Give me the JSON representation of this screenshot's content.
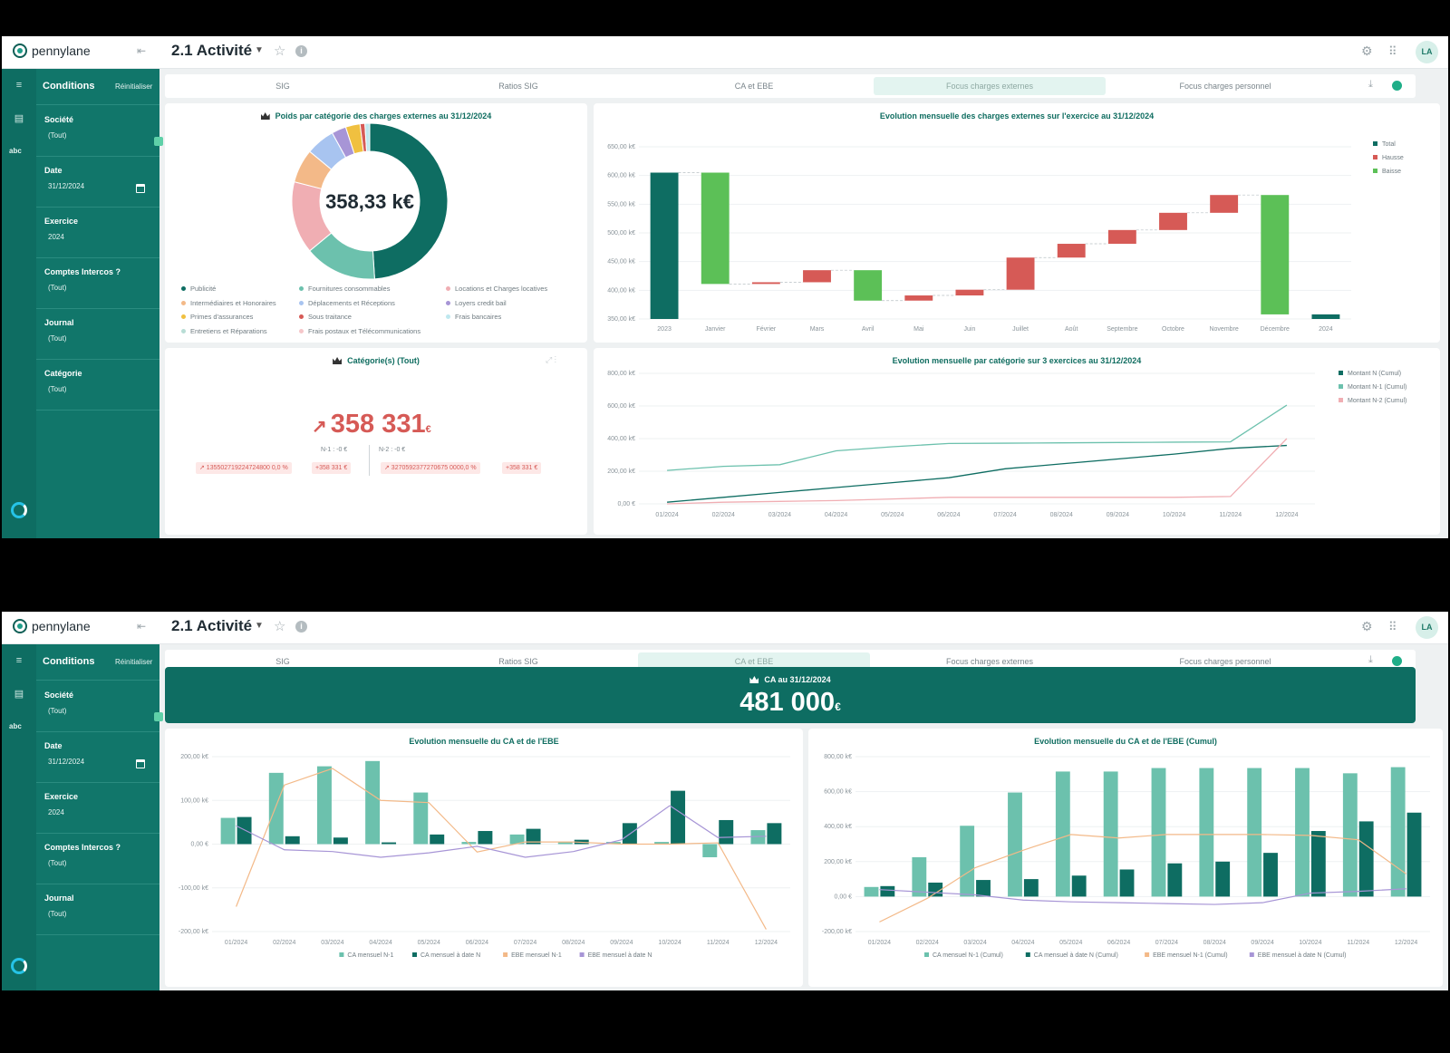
{
  "app": {
    "brand": "pennylane",
    "page_title": "2.1 Activité",
    "avatar": "LA",
    "collapse_icon": "sidebar-collapse-icon"
  },
  "sidebar": {
    "title": "Conditions",
    "reset": "Réinitialiser",
    "rail_abc": "abc"
  },
  "filters_screen1": [
    {
      "label": "Société",
      "value": "(Tout)"
    },
    {
      "label": "Date",
      "value": "31/12/2024"
    },
    {
      "label": "Exercice",
      "value": "2024"
    },
    {
      "label": "Comptes Intercos ?",
      "value": "(Tout)"
    },
    {
      "label": "Journal",
      "value": "(Tout)"
    },
    {
      "label": "Catégorie",
      "value": "(Tout)"
    }
  ],
  "filters_screen2": [
    {
      "label": "Société",
      "value": "(Tout)"
    },
    {
      "label": "Date",
      "value": "31/12/2024"
    },
    {
      "label": "Exercice",
      "value": "2024"
    },
    {
      "label": "Comptes Intercos ?",
      "value": "(Tout)"
    },
    {
      "label": "Journal",
      "value": "(Tout)"
    }
  ],
  "tabs": [
    "SIG",
    "Ratios SIG",
    "CA et EBE",
    "Focus charges externes",
    "Focus charges personnel"
  ],
  "screen1_active_tab": "Focus charges externes",
  "screen2_active_tab": "CA et EBE",
  "colors": {
    "dark_teal": "#0e6d62",
    "mint": "#6cc1ad",
    "red": "#d65a56",
    "green": "#5cc057",
    "orange": "#f3b988",
    "purple": "#a795d6",
    "pink": "#f0aeb3"
  },
  "donut": {
    "title": "Poids par catégorie des charges externes au 31/12/2024",
    "center_label": "358,33 k€",
    "legend": [
      {
        "label": "Publicité",
        "color": "#0e6d62"
      },
      {
        "label": "Fournitures consommables",
        "color": "#6cc1ad"
      },
      {
        "label": "Locations et Charges locatives",
        "color": "#f0aeb3"
      },
      {
        "label": "Intermédiaires et Honoraires",
        "color": "#f3b988"
      },
      {
        "label": "Déplacements et Réceptions",
        "color": "#a8c4f0"
      },
      {
        "label": "Loyers credit bail",
        "color": "#a795d6"
      },
      {
        "label": "Primes d'assurances",
        "color": "#f0c040"
      },
      {
        "label": "Sous traitance",
        "color": "#d65a56"
      },
      {
        "label": "Frais bancaires",
        "color": "#bfe8ef"
      },
      {
        "label": "Entretiens et Réparations",
        "color": "#b8ddd5"
      },
      {
        "label": "Frais postaux et Télécommunications",
        "color": "#f5c6c9"
      }
    ],
    "chart_data": {
      "type": "pie",
      "categories": [
        "Publicité",
        "Fournitures consommables",
        "Locations et Charges locatives",
        "Intermédiaires et Honoraires",
        "Déplacements et Réceptions",
        "Loyers credit bail",
        "Primes d'assurances",
        "Sous traitance",
        "Frais bancaires"
      ],
      "values": [
        49,
        15,
        15,
        7,
        6,
        3,
        3,
        1,
        1
      ]
    }
  },
  "waterfall": {
    "title": "Evolution mensuelle des charges externes sur l'exercice  au 31/12/2024",
    "legend": [
      {
        "label": "Total",
        "color": "#0e6d62"
      },
      {
        "label": "Hausse",
        "color": "#d65a56"
      },
      {
        "label": "Baisse",
        "color": "#5cc057"
      }
    ],
    "chart_data": {
      "type": "bar",
      "categories": [
        "2023",
        "Janvier",
        "Février",
        "Mars",
        "Avril",
        "Mai",
        "Juin",
        "Juillet",
        "Août",
        "Septembre",
        "Octobre",
        "Novembre",
        "Décembre",
        "2024"
      ],
      "y_ticks": [
        "650,00 k€",
        "600,00 k€",
        "550,00 k€",
        "500,00 k€",
        "450,00 k€",
        "400,00 k€",
        "350,00 k€"
      ],
      "ylim": [
        350,
        650
      ],
      "bars": [
        {
          "kind": "Total",
          "start": 350,
          "end": 605
        },
        {
          "kind": "Baisse",
          "start": 605,
          "end": 411
        },
        {
          "kind": "Hausse",
          "start": 411,
          "end": 414
        },
        {
          "kind": "Hausse",
          "start": 414,
          "end": 435
        },
        {
          "kind": "Baisse",
          "start": 435,
          "end": 382
        },
        {
          "kind": "Hausse",
          "start": 382,
          "end": 391
        },
        {
          "kind": "Hausse",
          "start": 391,
          "end": 401
        },
        {
          "kind": "Hausse",
          "start": 401,
          "end": 457
        },
        {
          "kind": "Hausse",
          "start": 457,
          "end": 481
        },
        {
          "kind": "Hausse",
          "start": 481,
          "end": 505
        },
        {
          "kind": "Hausse",
          "start": 505,
          "end": 535
        },
        {
          "kind": "Hausse",
          "start": 535,
          "end": 566
        },
        {
          "kind": "Baisse",
          "start": 566,
          "end": 358
        },
        {
          "kind": "Total",
          "start": 350,
          "end": 358
        }
      ]
    }
  },
  "kpi": {
    "title": "Catégorie(s) (Tout)",
    "value": "358 331",
    "unit": "€",
    "n1_label": "N-1 :  -0 €",
    "n2_label": "N-2 :  -0 €",
    "chips": [
      "↗ 135502719224724800 0,0 %",
      "+358 331 €",
      "↗ 3270592377270675 0000,0 %",
      "+358 331 €"
    ]
  },
  "cumul3": {
    "title": "Evolution mensuelle par catégorie sur 3 exercices au 31/12/2024",
    "chart_data": {
      "type": "line",
      "x": [
        "01/2024",
        "02/2024",
        "03/2024",
        "04/2024",
        "05/2024",
        "06/2024",
        "07/2024",
        "08/2024",
        "09/2024",
        "10/2024",
        "11/2024",
        "12/2024"
      ],
      "y_ticks": [
        "800,00 k€",
        "600,00 k€",
        "400,00 k€",
        "200,00 k€",
        "0,00 €"
      ],
      "ylim": [
        0,
        800
      ],
      "series": [
        {
          "name": "Montant N (Cumul)",
          "color": "#0e6d62",
          "values": [
            10,
            40,
            70,
            100,
            130,
            160,
            215,
            245,
            275,
            305,
            340,
            358
          ]
        },
        {
          "name": "Montant N-1 (Cumul)",
          "color": "#6cc1ad",
          "values": [
            205,
            230,
            240,
            325,
            350,
            370,
            372,
            374,
            376,
            378,
            380,
            605
          ]
        },
        {
          "name": "Montant N-2 (Cumul)",
          "color": "#f0aeb3",
          "values": [
            0,
            10,
            15,
            20,
            30,
            40,
            40,
            40,
            40,
            40,
            45,
            400
          ]
        }
      ]
    }
  },
  "banner": {
    "title": "CA au 31/12/2024",
    "value": "481 000",
    "unit": "€"
  },
  "monthly": {
    "title": "Evolution mensuelle du CA et de l'EBE",
    "chart_data": {
      "type": "bar",
      "categories": [
        "01/2024",
        "02/2024",
        "03/2024",
        "04/2024",
        "05/2024",
        "06/2024",
        "07/2024",
        "08/2024",
        "09/2024",
        "10/2024",
        "11/2024",
        "12/2024"
      ],
      "y_ticks": [
        "200,00 k€",
        "100,00 k€",
        "0,00 €",
        "-100,00 k€",
        "-200,00 k€"
      ],
      "ylim": [
        -200,
        200
      ],
      "series": [
        {
          "name": "CA mensuel N-1",
          "color": "#6cc1ad",
          "values": [
            60,
            163,
            178,
            190,
            118,
            5,
            22,
            5,
            5,
            5,
            -30,
            32
          ]
        },
        {
          "name": "CA mensuel à date N",
          "color": "#0e6d62",
          "values": [
            62,
            18,
            15,
            4,
            22,
            30,
            35,
            10,
            48,
            122,
            55,
            48
          ]
        },
        {
          "name": "EBE mensuel N-1",
          "color": "#f3b988",
          "values": [
            -143,
            135,
            173,
            100,
            95,
            -18,
            5,
            5,
            0,
            0,
            3,
            -195
          ]
        },
        {
          "name": "EBE mensuel à date N",
          "color": "#a795d6",
          "values": [
            42,
            -13,
            -17,
            -30,
            -20,
            -5,
            -30,
            -17,
            10,
            88,
            15,
            18
          ]
        }
      ]
    }
  },
  "monthly_cumul": {
    "title": "Evolution mensuelle du CA et de l'EBE (Cumul)",
    "chart_data": {
      "type": "bar",
      "categories": [
        "01/2024",
        "02/2024",
        "03/2024",
        "04/2024",
        "05/2024",
        "06/2024",
        "07/2024",
        "08/2024",
        "09/2024",
        "10/2024",
        "11/2024",
        "12/2024"
      ],
      "y_ticks": [
        "800,00 k€",
        "600,00 k€",
        "400,00 k€",
        "200,00 k€",
        "0,00 €",
        "-200,00 k€"
      ],
      "ylim": [
        -200,
        800
      ],
      "series": [
        {
          "name": "CA mensuel N-1 (Cumul)",
          "color": "#6cc1ad",
          "values": [
            55,
            225,
            405,
            595,
            715,
            715,
            735,
            735,
            735,
            735,
            705,
            740
          ]
        },
        {
          "name": "CA mensuel à date N (Cumul)",
          "color": "#0e6d62",
          "values": [
            60,
            80,
            95,
            100,
            120,
            155,
            190,
            200,
            250,
            375,
            430,
            480
          ]
        },
        {
          "name": "EBE mensuel N-1 (Cumul)",
          "color": "#f3b988",
          "values": [
            -145,
            -10,
            165,
            265,
            355,
            335,
            355,
            355,
            355,
            350,
            325,
            130
          ]
        },
        {
          "name": "EBE mensuel à date N (Cumul)",
          "color": "#a795d6",
          "values": [
            40,
            25,
            10,
            -20,
            -30,
            -35,
            -40,
            -45,
            -35,
            20,
            30,
            45
          ]
        }
      ]
    }
  }
}
